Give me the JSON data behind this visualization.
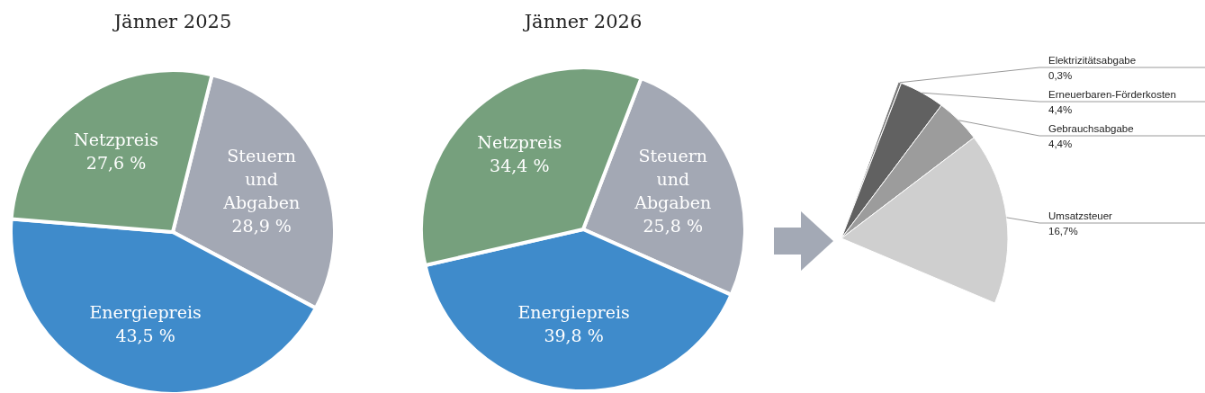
{
  "chart_data": [
    {
      "type": "pie",
      "title": "Jänner 2025",
      "categories": [
        "Steuern und Abgaben",
        "Energiepreis",
        "Netzpreis"
      ],
      "values": [
        28.9,
        43.5,
        27.6
      ],
      "colors": [
        "#a3a8b4",
        "#3f8bcb",
        "#76a07d"
      ],
      "value_labels": [
        "28,9 %",
        "43,5 %",
        "27,6 %"
      ],
      "legend": false
    },
    {
      "type": "pie",
      "title": "Jänner 2026",
      "categories": [
        "Steuern und Abgaben",
        "Energiepreis",
        "Netzpreis"
      ],
      "values": [
        25.8,
        39.8,
        34.4
      ],
      "colors": [
        "#a3a8b4",
        "#3f8bcb",
        "#76a07d"
      ],
      "value_labels": [
        "25,8 %",
        "39,8 %",
        "34,4 %"
      ],
      "legend": false
    },
    {
      "type": "pie",
      "categories": [
        "Elektrizitätsabgabe",
        "Erneuerbaren-Förderkosten",
        "Gebrauchsabgabe",
        "Umsatzsteuer"
      ],
      "values": [
        0.3,
        4.4,
        4.4,
        16.7
      ],
      "colors": [
        "#7a7a7a",
        "#616161",
        "#9c9c9c",
        "#cfcfcf"
      ],
      "value_labels": [
        "0,3%",
        "4,4%",
        "4,4%",
        "16,7%"
      ],
      "legend": false
    }
  ]
}
